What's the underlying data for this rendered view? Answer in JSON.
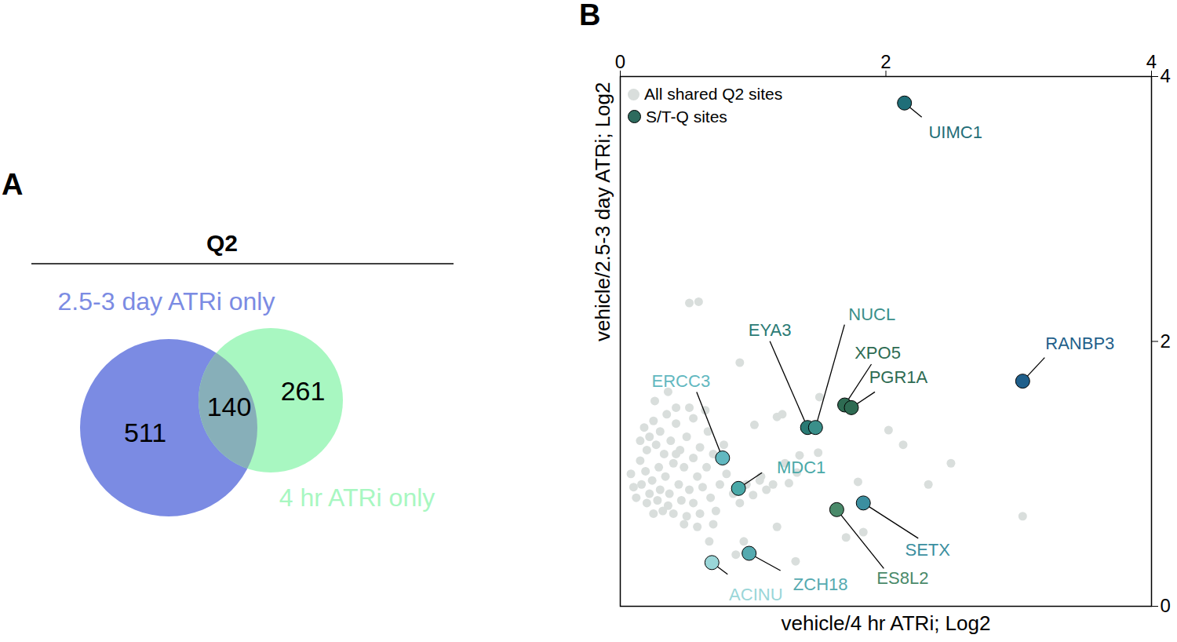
{
  "chart_data": [
    {
      "type": "venn",
      "panel": "A",
      "title": "Q2",
      "sets": [
        {
          "name": "2.5-3 day ATRi only",
          "color": "#7b8be3",
          "value": 511
        },
        {
          "name": "4 hr ATRi only",
          "color": "#a8f7c1",
          "value": 261
        }
      ],
      "overlap": 140
    },
    {
      "type": "scatter",
      "panel": "B",
      "xlabel": "vehicle/4 hr ATRi; Log2",
      "ylabel": "vehicle/2.5-3 day ATRi; Log2",
      "xlim": [
        0,
        4
      ],
      "xticks": [
        0,
        2,
        4
      ],
      "ylim": [
        0,
        4
      ],
      "yticks": [
        0,
        2,
        4
      ],
      "legend": "top-left",
      "series": [
        {
          "name": "All shared Q2 sites",
          "color": "#d9dedc",
          "x": [
            0.52,
            0.59,
            0.9,
            1.5,
            1.01,
            1.18,
            1.22,
            2.02,
            2.13,
            2.49,
            2.32,
            3.03,
            1.49,
            1.35,
            1.79,
            1.83,
            1.7,
            1.32,
            1.18,
            0.87,
            0.93,
            0.67,
            1.06,
            1.15,
            1.27,
            1.33,
            1.24,
            0.18,
            0.22,
            0.25,
            0.3,
            0.2,
            0.27,
            0.33,
            0.38,
            0.42,
            0.35,
            0.15,
            0.19,
            0.24,
            0.29,
            0.34,
            0.4,
            0.45,
            0.5,
            0.48,
            0.55,
            0.6,
            0.58,
            0.65,
            0.7,
            0.62,
            0.52,
            0.44,
            0.37,
            0.3,
            0.22,
            0.16,
            0.12,
            0.2,
            0.28,
            0.36,
            0.46,
            0.55,
            0.68,
            0.75,
            0.8,
            0.72,
            0.6,
            0.5,
            0.4,
            0.32,
            0.25,
            0.42,
            0.55,
            0.66,
            0.78,
            0.85,
            0.9,
            0.95,
            1.0,
            1.05,
            1.1,
            0.48,
            0.58,
            0.7,
            0.36,
            0.42,
            0.52,
            0.64,
            0.15,
            0.26,
            0.08,
            0.1
          ],
          "y": [
            2.29,
            2.3,
            1.84,
            1.58,
            1.37,
            1.43,
            1.45,
            1.33,
            1.22,
            1.08,
            0.92,
            0.68,
            1.16,
            1.14,
            0.94,
            0.56,
            0.52,
            0.34,
            0.6,
            0.39,
            0.49,
            0.49,
            0.98,
            0.92,
            0.93,
            1.01,
            1.08,
            1.35,
            1.28,
            1.4,
            1.32,
            1.18,
            1.22,
            1.15,
            1.25,
            1.38,
            1.45,
            1.1,
            1.02,
            0.95,
            1.05,
            0.98,
            1.08,
            1.18,
            1.28,
            1.05,
            1.12,
            1.2,
            0.98,
            1.05,
            1.15,
            0.9,
            0.88,
            0.92,
            0.85,
            0.88,
            0.85,
            0.92,
            0.82,
            0.78,
            0.8,
            0.76,
            0.8,
            0.78,
            0.82,
            0.92,
            1.0,
            0.72,
            0.7,
            0.68,
            0.7,
            0.72,
            0.7,
            1.5,
            1.42,
            1.32,
            1.22,
            0.85,
            0.78,
            0.92,
            0.84,
            0.95,
            0.88,
            0.62,
            0.6,
            0.62,
            1.62,
            1.15,
            1.5,
            1.48,
            1.25,
            1.55,
            1.0,
            0.9
          ]
        },
        {
          "name": "S/T-Q sites",
          "color": "#2e6b5e",
          "labels": [
            "UIMC1",
            "RANBP3",
            "XPO5",
            "PGR1A",
            "EYA3",
            "NUCL",
            "ERCC3",
            "MDC1",
            "SETX",
            "ES8L2",
            "ZCH18",
            "ACINU"
          ],
          "colors": [
            "#1f6e78",
            "#1f5f8b",
            "#2e6b52",
            "#2e6b52",
            "#2a7a74",
            "#3a8f8a",
            "#62b8c0",
            "#4aa9a8",
            "#3b8fa0",
            "#4a8a6a",
            "#55aab0",
            "#9ad6d8"
          ],
          "x": [
            2.14,
            3.03,
            1.69,
            1.74,
            1.41,
            1.47,
            0.77,
            0.89,
            1.83,
            1.63,
            0.97,
            0.69
          ],
          "y": [
            3.8,
            1.7,
            1.52,
            1.5,
            1.35,
            1.35,
            1.12,
            0.89,
            0.78,
            0.73,
            0.4,
            0.33
          ]
        }
      ]
    }
  ]
}
